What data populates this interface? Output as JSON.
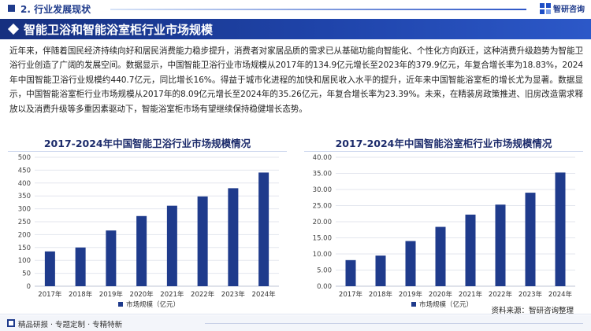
{
  "section": {
    "title": "2. 行业发展现状"
  },
  "brand": {
    "name": "智研咨询"
  },
  "heading": {
    "title": "智能卫浴和智能浴室柜行业市场规模"
  },
  "paragraph": "近年来，伴随着国民经济持续向好和居民消费能力稳步提升，消费者对家居品质的需求已从基础功能向智能化、个性化方向跃迁，这种消费升级趋势为智能卫浴行业创造了广阔的发展空间。数据显示，中国智能卫浴行业市场规模从2017年的134.9亿元增长至2023年的379.9亿元，年复合增长率为18.83%，2024年中国智能卫浴行业规模约440.7亿元，同比增长16%。得益于城市化进程的加快和居民收入水平的提升，近年来中国智能浴室柜的增长尤为显著。数据显示，中国智能浴室柜行业市场规模从2017年的8.09亿元增长至2024年的35.26亿元，年复合增长率为23.39%。未来，在精装房政策推进、旧房改造需求释放以及消费升级等多重因素驱动下，智能浴室柜市场有望继续保持稳健增长态势。",
  "source": "资料来源：智研咨询整理",
  "footer": {
    "text": "精品研报 · 专题定制 · 专精特新"
  },
  "colors": {
    "bar": "#1f3b8c",
    "accent": "#2c58c8"
  },
  "chart_data": [
    {
      "type": "bar",
      "title": "2017-2024年中国智能卫浴行业市场规模情况",
      "categories": [
        "2017年",
        "2018年",
        "2019年",
        "2020年",
        "2021年",
        "2022年",
        "2023年",
        "2024年"
      ],
      "series": [
        {
          "name": "市场规模（亿元）",
          "values": [
            134.9,
            150,
            216,
            272,
            312,
            348,
            379.9,
            440.7
          ]
        }
      ],
      "ylim": [
        0,
        500
      ],
      "yticks": [
        "0",
        "50",
        "100",
        "150",
        "200",
        "250",
        "300",
        "350",
        "400",
        "450",
        "500"
      ],
      "ytick_values": [
        0,
        50,
        100,
        150,
        200,
        250,
        300,
        350,
        400,
        450,
        500
      ],
      "grid": true,
      "legend": "bottom"
    },
    {
      "type": "bar",
      "title": "2017-2024年中国智能浴室柜行业市场规模情况",
      "categories": [
        "2017年",
        "2018年",
        "2019年",
        "2020年",
        "2021年",
        "2022年",
        "2023年",
        "2024年"
      ],
      "series": [
        {
          "name": "市场规模（亿元）",
          "values": [
            8.09,
            9.5,
            14,
            18.4,
            22.2,
            25.3,
            29,
            35.26
          ]
        }
      ],
      "ylim": [
        0,
        40
      ],
      "yticks": [
        "0.00",
        "5.00",
        "10.00",
        "15.00",
        "20.00",
        "25.00",
        "30.00",
        "35.00",
        "40.00"
      ],
      "ytick_values": [
        0,
        5,
        10,
        15,
        20,
        25,
        30,
        35,
        40
      ],
      "grid": true,
      "legend": "bottom"
    }
  ]
}
